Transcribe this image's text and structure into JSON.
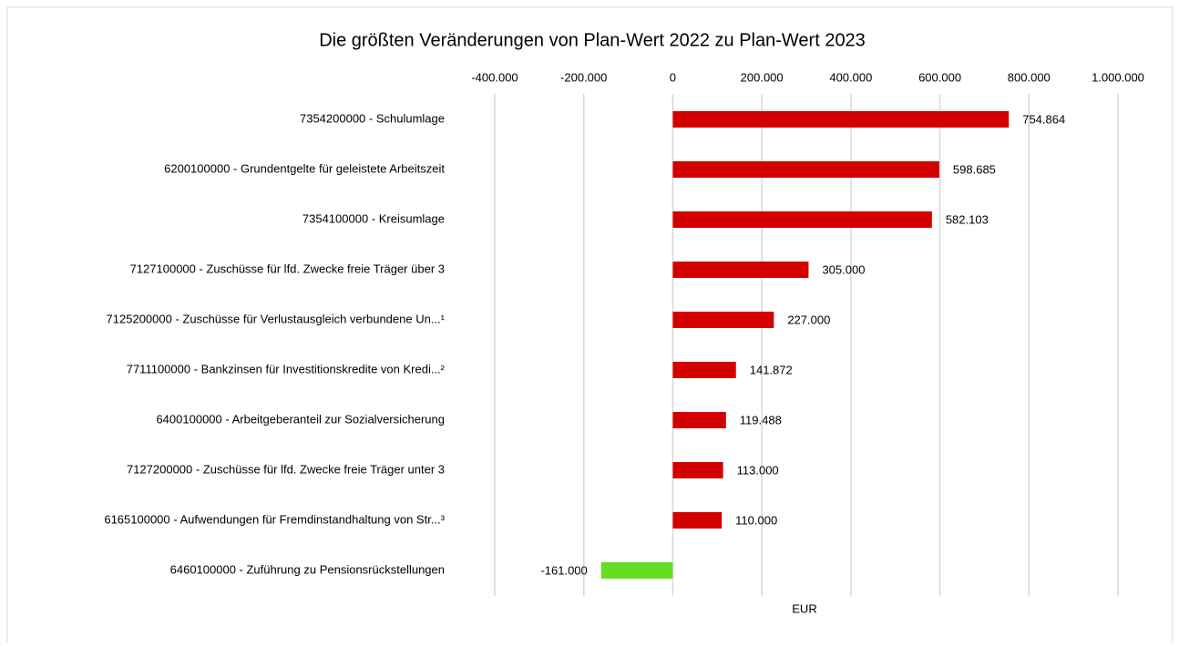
{
  "chart_data": {
    "type": "barh",
    "title": "Die größten Veränderungen von Plan-Wert 2022 zu Plan-Wert 2023",
    "xlabel": "EUR",
    "categories": [
      "7354200000 - Schulumlage",
      "6200100000 - Grundentgelte für geleistete Arbeitszeit",
      "7354100000 - Kreisumlage",
      "7127100000 - Zuschüsse für lfd. Zwecke freie Träger über 3",
      "7125200000 - Zuschüsse für Verlustausgleich verbundene Un...¹",
      "7711100000 - Bankzinsen für Investitionskredite von Kredi...²",
      "6400100000 - Arbeitgeberanteil zur Sozialversicherung",
      "7127200000 - Zuschüsse für lfd. Zwecke freie Träger unter 3",
      "6165100000 - Aufwendungen für Fremdinstandhaltung von Str...³",
      "6460100000 - Zuführung zu Pensionsrückstellungen"
    ],
    "values": [
      754864,
      598685,
      582103,
      305000,
      227000,
      141872,
      119488,
      113000,
      110000,
      -161000
    ],
    "value_labels": [
      "754.864",
      "598.685",
      "582.103",
      "305.000",
      "227.000",
      "141.872",
      "119.488",
      "113.000",
      "110.000",
      "-161.000"
    ],
    "colors": [
      "#d40000",
      "#d40000",
      "#d40000",
      "#d40000",
      "#d40000",
      "#d40000",
      "#d40000",
      "#d40000",
      "#d40000",
      "#66dd22"
    ],
    "xlim": [
      -400000,
      1000000
    ],
    "xticks": [
      {
        "value": -400000,
        "label": "-400.000"
      },
      {
        "value": -200000,
        "label": "-200.000"
      },
      0,
      {
        "value": 200000,
        "label": "200.000"
      },
      {
        "value": 400000,
        "label": "400.000"
      },
      {
        "value": 600000,
        "label": "600.000"
      },
      {
        "value": 800000,
        "label": "800.000"
      },
      {
        "value": 1000000,
        "label": "1.000.000"
      }
    ],
    "grid": true
  }
}
